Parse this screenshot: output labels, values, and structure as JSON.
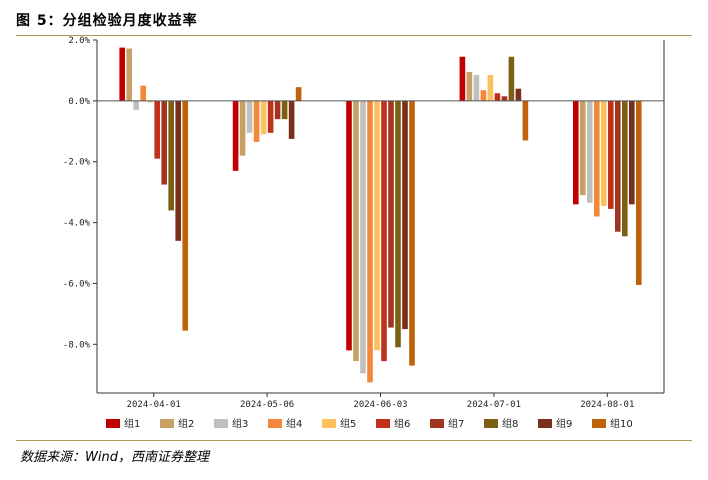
{
  "figure": {
    "title": "图 5：分组检验月度收益率",
    "source": "数据来源：Wind，西南证券整理"
  },
  "chart_data": {
    "type": "bar",
    "categories": [
      "2024-04-01",
      "2024-05-06",
      "2024-06-03",
      "2024-07-01",
      "2024-08-01"
    ],
    "series": [
      {
        "name": "组1",
        "color": "#c00000",
        "values": [
          1.75,
          -2.3,
          -8.2,
          1.45,
          -3.4
        ]
      },
      {
        "name": "组2",
        "color": "#c8a064",
        "values": [
          1.72,
          -1.8,
          -8.55,
          0.95,
          -3.1
        ]
      },
      {
        "name": "组3",
        "color": "#bfbfbf",
        "values": [
          -0.3,
          -1.05,
          -8.95,
          0.85,
          -3.35
        ]
      },
      {
        "name": "组4",
        "color": "#f4883a",
        "values": [
          0.5,
          -1.35,
          -9.25,
          0.35,
          -3.8
        ]
      },
      {
        "name": "组5",
        "color": "#fdc05a",
        "values": [
          -0.05,
          -1.1,
          -8.2,
          0.85,
          -3.45
        ]
      },
      {
        "name": "组6",
        "color": "#c0301a",
        "values": [
          -1.9,
          -1.05,
          -8.55,
          0.25,
          -3.55
        ]
      },
      {
        "name": "组7",
        "color": "#a23520",
        "values": [
          -2.75,
          -0.6,
          -7.45,
          0.15,
          -4.3
        ]
      },
      {
        "name": "组8",
        "color": "#7a6010",
        "values": [
          -3.6,
          -0.6,
          -8.1,
          1.45,
          -4.45
        ]
      },
      {
        "name": "组9",
        "color": "#7a2e1e",
        "values": [
          -4.6,
          -1.25,
          -7.5,
          0.4,
          -3.4
        ]
      },
      {
        "name": "组10",
        "color": "#c0620a",
        "values": [
          -7.55,
          0.45,
          -8.7,
          -1.3,
          -6.05
        ]
      }
    ],
    "y_ticks": [
      "2.0%",
      "0.0%",
      "-2.0%",
      "-4.0%",
      "-6.0%",
      "-8.0%"
    ],
    "y_tick_values": [
      2,
      0,
      -2,
      -4,
      -6,
      -8
    ],
    "ylim": [
      -9.6,
      2.0
    ],
    "unit": "%",
    "grid": false,
    "legend_position": "bottom"
  }
}
